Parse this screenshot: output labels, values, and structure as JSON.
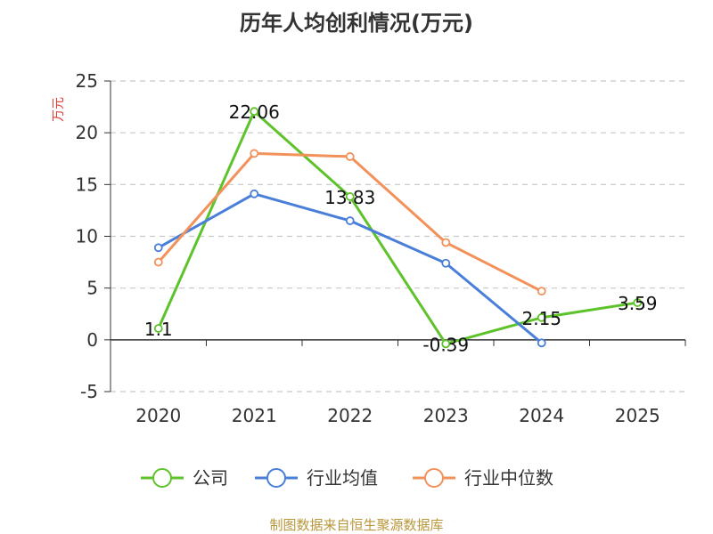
{
  "chart_data": {
    "type": "line",
    "title": "历年人均创利情况(万元)",
    "ylabel": "万元",
    "xlabel": "",
    "categories": [
      "2020",
      "2021",
      "2022",
      "2023",
      "2024",
      "2025"
    ],
    "ylim": [
      -5,
      25
    ],
    "yticks": [
      -5,
      0,
      5,
      10,
      15,
      20,
      25
    ],
    "grid": true,
    "legend_position": "bottom",
    "series": [
      {
        "name": "公司",
        "color": "#5ec22b",
        "values": [
          1.1,
          22.06,
          13.83,
          -0.39,
          2.15,
          3.59
        ],
        "labels": [
          "1.1",
          "22.06",
          "13.83",
          "-0.39",
          "2.15",
          "3.59"
        ]
      },
      {
        "name": "行业均值",
        "color": "#4a7fd9",
        "values": [
          8.9,
          14.1,
          11.5,
          7.4,
          -0.3,
          null
        ]
      },
      {
        "name": "行业中位数",
        "color": "#f2915a",
        "values": [
          7.5,
          18.0,
          17.7,
          9.4,
          4.7,
          null
        ]
      }
    ]
  },
  "source": "制图数据来自恒生聚源数据库"
}
